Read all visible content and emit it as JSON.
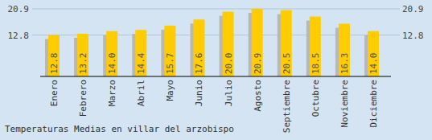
{
  "chart_data": {
    "type": "bar",
    "title": "Temperaturas Medias en villar del arzobispo",
    "categories": [
      "Enero",
      "Febrero",
      "Marzo",
      "Abril",
      "Mayo",
      "Junio",
      "Julio",
      "Agosto",
      "Septiembre",
      "Octubre",
      "Noviembre",
      "Diciembre"
    ],
    "values": [
      12.8,
      13.2,
      14.0,
      14.4,
      15.7,
      17.6,
      20.0,
      20.9,
      20.5,
      18.5,
      16.3,
      14.0
    ],
    "value_labels": [
      "12.8",
      "13.2",
      "14.0",
      "14.4",
      "15.7",
      "17.6",
      "20.0",
      "20.9",
      "20.5",
      "18.5",
      "16.3",
      "14.0"
    ],
    "color": "#ffcc00",
    "ylim": [
      0,
      20.9
    ],
    "yticks": [
      12.8,
      20.9
    ],
    "grid": true,
    "data_labels": true
  }
}
